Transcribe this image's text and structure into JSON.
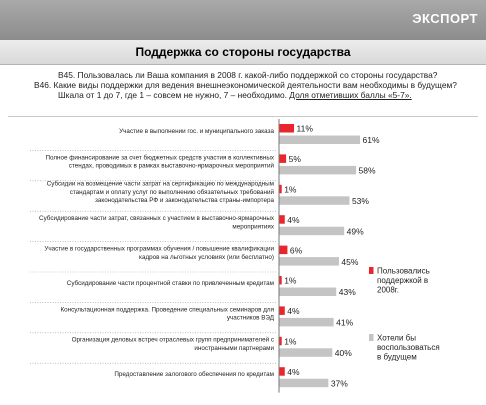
{
  "section_tag": "ЭКСПОРТ",
  "page_title": "Поддержка со стороны государства",
  "questions": {
    "q1": "В45.  Пользовалась ли Ваша компания в 2008 г. какой-либо поддержкой со стороны государства?",
    "q2": "В46.  Какие виды поддержки для ведения внешнеэкономической деятельности вам необходимы в будущем?",
    "q3_main": "Шкала от 1 до 7, где 1 – совсем не нужно, 7 – необходимо. ",
    "q3_underlined": "Доля отметивших баллы «5-7»."
  },
  "colors": {
    "used": "#e8262b",
    "future": "#c4c4c4"
  },
  "chart_data": {
    "type": "bar",
    "orientation": "horizontal",
    "unit": "%",
    "categories": [
      [
        "Участие в выполнении гос. и муниципального заказа"
      ],
      [
        "Полное финансирование за счет бюджетных средств участия в коллективных",
        "стендах, проводимых в рамках выставочно-ярмарочных мероприятий"
      ],
      [
        "Субсидии на возмещение части затрат на сертификацию по международным",
        "стандартам и оплату услуг по выполнению обязательных требований",
        "законодательства РФ и законодательства страны-импортера"
      ],
      [
        "Субсидирование части затрат, связанных с участием в выставочно-ярмарочных",
        "мероприятиях"
      ],
      [
        "Участие в государственных  программах обучения / повышение квалификации",
        "кадров на льготных условиях (или бесплатно)"
      ],
      [
        "Субсидирование части процентной ставки по привлеченным кредитам"
      ],
      [
        "Консультационная поддержка. Проведение специальных семинаров для",
        "участников ВЭД"
      ],
      [
        "Организация деловых встреч отраслевых групп предпринимателей с",
        "иностранными партнерами"
      ],
      [
        "Предоставление залогового обеспечения по кредитам"
      ]
    ],
    "series": [
      {
        "name": "Пользовались поддержкой в 2008г.",
        "values": [
          11,
          5,
          1,
          4,
          6,
          1,
          4,
          1,
          4
        ]
      },
      {
        "name": "Хотели бы воспользоваться в будущем",
        "values": [
          61,
          58,
          53,
          49,
          45,
          43,
          41,
          40,
          37
        ]
      }
    ],
    "value_labels": [
      [
        "11%",
        "5%",
        "1%",
        "4%",
        "6%",
        "1%",
        "4%",
        "1%",
        "4%"
      ],
      [
        "61%",
        "58%",
        "53%",
        "49%",
        "45%",
        "43%",
        "41%",
        "40%",
        "37%"
      ]
    ],
    "legend": {
      "placement": "right",
      "items": [
        [
          "Пользовались",
          "поддержкой в",
          "2008г."
        ],
        [
          "Хотели бы",
          "воспользоваться",
          "в будущем"
        ]
      ]
    },
    "xlim": [
      0,
      100
    ],
    "grid": false
  }
}
